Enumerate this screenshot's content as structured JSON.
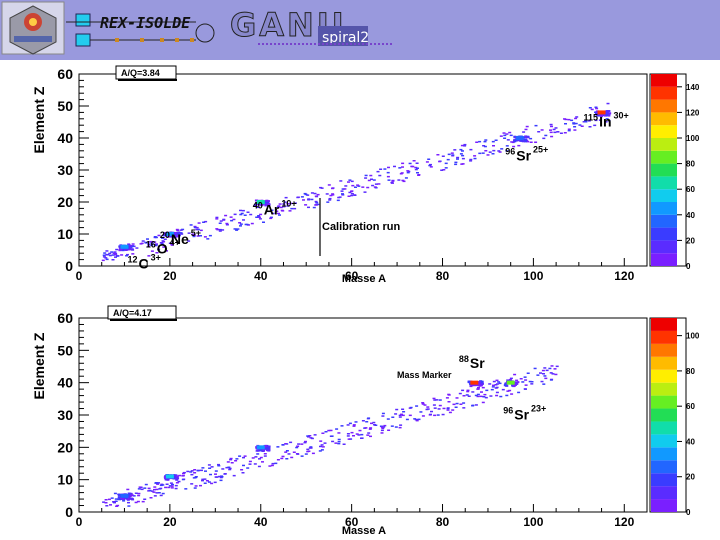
{
  "header": {
    "rex_isolde_label": "REX-ISOLDE",
    "ganil_label": "GANIL",
    "spiral2_label": "spiral2"
  },
  "chart_data": [
    {
      "type": "heatmap",
      "legend_label": "A/Q=3.84",
      "xlabel": "Masse A",
      "ylabel": "Element Z",
      "xlim": [
        0,
        125
      ],
      "ylim": [
        0,
        60
      ],
      "x_ticks": [
        0,
        20,
        40,
        60,
        80,
        100,
        120
      ],
      "y_ticks": [
        0,
        10,
        20,
        30,
        40,
        50,
        60
      ],
      "colorbar": {
        "min": 0,
        "max": 150,
        "ticks": [
          0,
          20,
          40,
          60,
          80,
          100,
          120,
          140
        ]
      },
      "annotations": [
        {
          "mass": "115",
          "element": "In",
          "charge": "30+",
          "x": 115,
          "y": 48
        },
        {
          "mass": "96",
          "element": "Sr",
          "charge": "25+",
          "x": 96,
          "y": 38
        },
        {
          "mass": "40",
          "element": "Ar",
          "charge": "10+",
          "x": 40,
          "y": 18
        },
        {
          "mass": "20",
          "element": "Ne",
          "charge": "5+",
          "x": 20,
          "y": 10
        },
        {
          "mass": "16",
          "element": "O",
          "charge": "4+",
          "x": 16,
          "y": 7
        },
        {
          "mass": "12",
          "element": "C",
          "charge": "3+",
          "x": 12,
          "y": 3
        }
      ],
      "note": "Calibration run",
      "hotspots": [
        {
          "x": 115,
          "y": 48,
          "level": 140
        },
        {
          "x": 40,
          "y": 20,
          "level": 60
        },
        {
          "x": 20,
          "y": 10,
          "level": 40
        },
        {
          "x": 10,
          "y": 6,
          "level": 40
        },
        {
          "x": 97,
          "y": 40,
          "level": 30
        }
      ]
    },
    {
      "type": "heatmap",
      "legend_label": "A/Q=4.17",
      "xlabel": "Masse A",
      "ylabel": "Element Z",
      "xlim": [
        0,
        125
      ],
      "ylim": [
        0,
        60
      ],
      "x_ticks": [
        0,
        20,
        40,
        60,
        80,
        100,
        120
      ],
      "y_ticks": [
        0,
        10,
        20,
        30,
        40,
        50,
        60
      ],
      "colorbar": {
        "min": 0,
        "max": 110,
        "ticks": [
          0,
          20,
          40,
          60,
          80,
          100
        ]
      },
      "annotations": [
        {
          "mass": "88",
          "element": "Sr",
          "charge": "",
          "x": 88,
          "y": 42
        },
        {
          "mass": "96",
          "element": "Sr",
          "charge": "23+",
          "x": 96,
          "y": 33
        }
      ],
      "note": "Mass Marker",
      "hotspots": [
        {
          "x": 87,
          "y": 40,
          "level": 100
        },
        {
          "x": 95,
          "y": 40,
          "level": 60
        },
        {
          "x": 20,
          "y": 11,
          "level": 40
        },
        {
          "x": 40,
          "y": 20,
          "level": 30
        },
        {
          "x": 10,
          "y": 5,
          "level": 20
        }
      ]
    }
  ]
}
